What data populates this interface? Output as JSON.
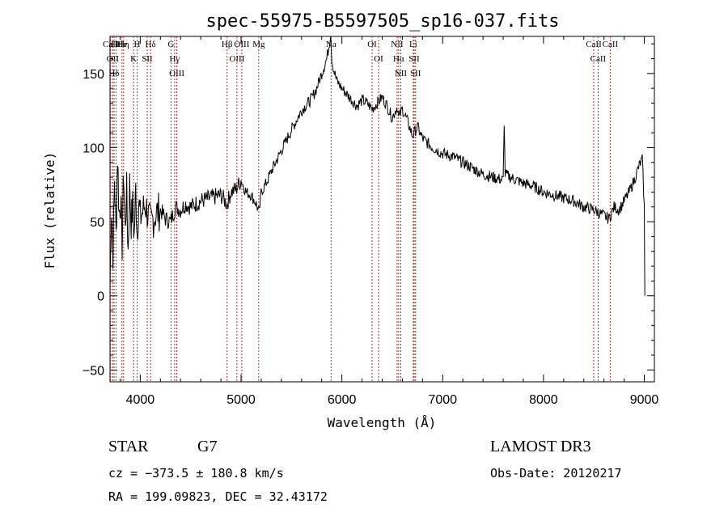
{
  "chart_data": {
    "type": "line",
    "title": "spec-55975-B5597505_sp16-037.fits",
    "xlabel": "Wavelength (Å)",
    "ylabel": "Flux (relative)",
    "xlim": [
      3700,
      9100
    ],
    "ylim": [
      -58,
      175
    ],
    "x_ticks": [
      4000,
      5000,
      6000,
      7000,
      8000,
      9000
    ],
    "y_ticks": [
      -50,
      0,
      50,
      100,
      150
    ],
    "grid": false,
    "legend": "none",
    "line_color": "#000000",
    "marker_line_color": "#b03030",
    "series": [
      {
        "x": [
          3700,
          3715,
          3730,
          3745,
          3760,
          3775,
          3790,
          3805,
          3820,
          3835,
          3850,
          3865,
          3880,
          3895,
          3910,
          3925,
          3940,
          3955,
          3970,
          3985,
          4000,
          4050,
          4100,
          4150,
          4200,
          4250,
          4300,
          4350,
          4400,
          4450,
          4500,
          4600,
          4700,
          4800,
          4860,
          4900,
          4950,
          5000,
          5050,
          5100,
          5150,
          5180,
          5200,
          5250,
          5300,
          5400,
          5500,
          5600,
          5700,
          5750,
          5800,
          5850,
          5870,
          5890,
          5900,
          5920,
          5950,
          6000,
          6050,
          6100,
          6150,
          6200,
          6250,
          6300,
          6350,
          6400,
          6450,
          6500,
          6550,
          6563,
          6600,
          6650,
          6700,
          6750,
          6800,
          6900,
          7000,
          7100,
          7200,
          7300,
          7400,
          7500,
          7600,
          7610,
          7620,
          7700,
          7800,
          7900,
          8000,
          8100,
          8200,
          8300,
          8400,
          8500,
          8550,
          8600,
          8650,
          8700,
          8750,
          8800,
          8850,
          8900,
          8950,
          8980,
          9000,
          9005
        ],
        "y": [
          10,
          60,
          30,
          80,
          40,
          95,
          55,
          65,
          35,
          85,
          45,
          70,
          30,
          75,
          50,
          60,
          40,
          72,
          42,
          64,
          52,
          62,
          48,
          55,
          58,
          52,
          50,
          60,
          58,
          62,
          60,
          64,
          66,
          68,
          62,
          70,
          72,
          78,
          70,
          68,
          62,
          56,
          70,
          76,
          84,
          98,
          112,
          125,
          133,
          140,
          150,
          160,
          168,
          178,
          160,
          152,
          145,
          140,
          136,
          132,
          128,
          132,
          130,
          126,
          130,
          134,
          128,
          120,
          128,
          120,
          126,
          118,
          108,
          114,
          106,
          100,
          96,
          94,
          90,
          86,
          82,
          80,
          78,
          118,
          82,
          79,
          76,
          74,
          70,
          68,
          66,
          64,
          60,
          58,
          56,
          54,
          52,
          60,
          58,
          64,
          70,
          78,
          88,
          92,
          60,
          0
        ]
      }
    ],
    "lines": [
      {
        "label": "Hδ",
        "x": 3740
      },
      {
        "label": "OII",
        "x": 3727
      },
      {
        "label": "CaII",
        "x": 3706
      },
      {
        "label": "Hε",
        "x": 3760
      },
      {
        "label": "He",
        "x": 3819
      },
      {
        "label": "Hη",
        "x": 3835
      },
      {
        "label": "K",
        "x": 3934
      },
      {
        "label": "H",
        "x": 3969
      },
      {
        "label": "SII",
        "x": 4069
      },
      {
        "label": "Hδ",
        "x": 4102
      },
      {
        "label": "OIII",
        "x": 4363
      },
      {
        "label": "Hγ",
        "x": 4341
      },
      {
        "label": "G",
        "x": 4305
      },
      {
        "label": "Hβ",
        "x": 4861
      },
      {
        "label": "OIII",
        "x": 4959
      },
      {
        "label": "OIII",
        "x": 5007
      },
      {
        "label": "Mg",
        "x": 5175
      },
      {
        "label": "Na",
        "x": 5893
      },
      {
        "label": "OI",
        "x": 6300
      },
      {
        "label": "OI",
        "x": 6364
      },
      {
        "label": "Hα",
        "x": 6563
      },
      {
        "label": "NII",
        "x": 6548
      },
      {
        "label": "NII",
        "x": 6584
      },
      {
        "label": "SII",
        "x": 6717
      },
      {
        "label": "Li",
        "x": 6708
      },
      {
        "label": "SII",
        "x": 6731
      },
      {
        "label": "CaII",
        "x": 8498
      },
      {
        "label": "CaII",
        "x": 8542
      },
      {
        "label": "CaII",
        "x": 8662
      }
    ]
  },
  "info": {
    "class": "STAR",
    "subclass": "G7",
    "survey": "LAMOST DR3",
    "redshift": "cz = −373.5 ± 180.8 km/s",
    "obs_date": "Obs-Date: 20120217",
    "coords": "RA = 199.09823, DEC =  32.43172"
  }
}
